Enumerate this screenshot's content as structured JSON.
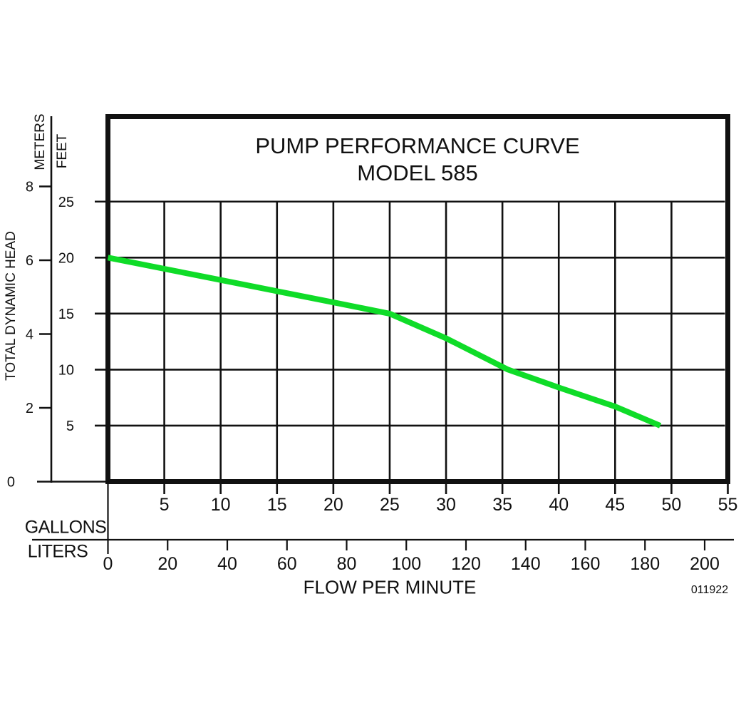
{
  "chart_data": {
    "type": "line",
    "title": "PUMP PERFORMANCE CURVE",
    "subtitle": "MODEL 585",
    "doc_number": "011922",
    "grid": true,
    "x_axis": {
      "title": "FLOW PER MINUTE",
      "scales": [
        {
          "name": "GALLONS",
          "ticks": [
            5,
            10,
            15,
            20,
            25,
            30,
            35,
            40,
            45,
            50,
            55
          ],
          "range": [
            0,
            55
          ]
        },
        {
          "name": "LITERS",
          "ticks": [
            0,
            20,
            40,
            60,
            80,
            100,
            120,
            140,
            160,
            180,
            200
          ],
          "range": [
            0,
            208
          ]
        }
      ]
    },
    "y_axis": {
      "title": "TOTAL DYNAMIC HEAD",
      "scales": [
        {
          "name": "METERS",
          "ticks": [
            0,
            2,
            4,
            6,
            8
          ],
          "range": [
            0,
            8
          ]
        },
        {
          "name": "FEET",
          "ticks": [
            5,
            10,
            15,
            20,
            25
          ],
          "range": [
            0,
            25
          ]
        }
      ]
    },
    "series": [
      {
        "name": "model-585-curve",
        "color": "#0FDC28",
        "units": [
          "gallons_per_minute",
          "feet_of_head"
        ],
        "points": [
          [
            0,
            20
          ],
          [
            5,
            19
          ],
          [
            10,
            18
          ],
          [
            15,
            17
          ],
          [
            20,
            16
          ],
          [
            25,
            15
          ],
          [
            30,
            12.8
          ],
          [
            35.5,
            10
          ],
          [
            40,
            8.4
          ],
          [
            45,
            6.7
          ],
          [
            49,
            5
          ]
        ]
      }
    ]
  }
}
